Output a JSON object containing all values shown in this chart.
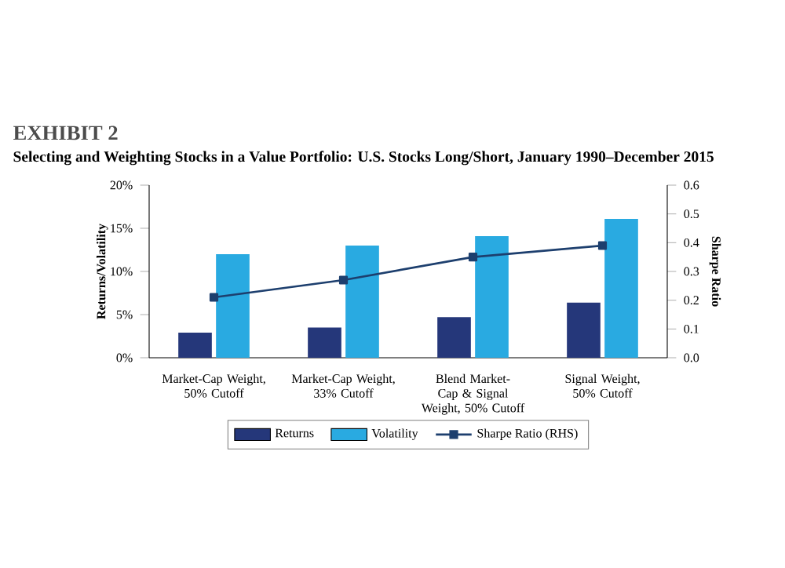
{
  "chart_data": {
    "type": "bar",
    "title": "EXHIBIT 2",
    "subtitle": "Selecting and Weighting Stocks in a Value Portfolio: U.S. Stocks Long/Short, January 1990–December 2015",
    "ylabel": "Returns/Volatility",
    "y2label": "Sharpe Ratio",
    "categories": [
      "Market-Cap Weight, 50% Cutoff",
      "Market-Cap Weight, 33% Cutoff",
      "Blend Market-Cap & Signal Weight, 50% Cutoff",
      "Signal Weight, 50% Cutoff"
    ],
    "series": [
      {
        "name": "Returns",
        "color": "#25377a",
        "values": [
          2.9,
          3.5,
          4.7,
          6.4
        ]
      },
      {
        "name": "Volatility",
        "color": "#29aae1",
        "values": [
          12.0,
          13.0,
          14.1,
          16.1
        ]
      },
      {
        "name": "Sharpe Ratio (RHS)",
        "type": "line",
        "axis": "y2",
        "color": "#1d3f6e",
        "values": [
          0.21,
          0.27,
          0.35,
          0.39
        ]
      }
    ],
    "marker": "square",
    "ylim": [
      0,
      20
    ],
    "yticks": [
      {
        "value": 0,
        "label": "0%"
      },
      {
        "value": 5,
        "label": "5%"
      },
      {
        "value": 10,
        "label": "10%"
      },
      {
        "value": 15,
        "label": "15%"
      },
      {
        "value": 20,
        "label": "20%"
      }
    ],
    "y2lim": [
      0,
      0.6
    ],
    "y2ticks": [
      {
        "value": 0,
        "label": "0.0"
      },
      {
        "value": 0.1,
        "label": "0.1"
      },
      {
        "value": 0.2,
        "label": "0.2"
      },
      {
        "value": 0.3,
        "label": "0.3"
      },
      {
        "value": 0.4,
        "label": "0.4"
      },
      {
        "value": 0.5,
        "label": "0.5"
      },
      {
        "value": 0.6,
        "label": "0.6"
      }
    ],
    "legend": "bottom",
    "grid": false
  }
}
